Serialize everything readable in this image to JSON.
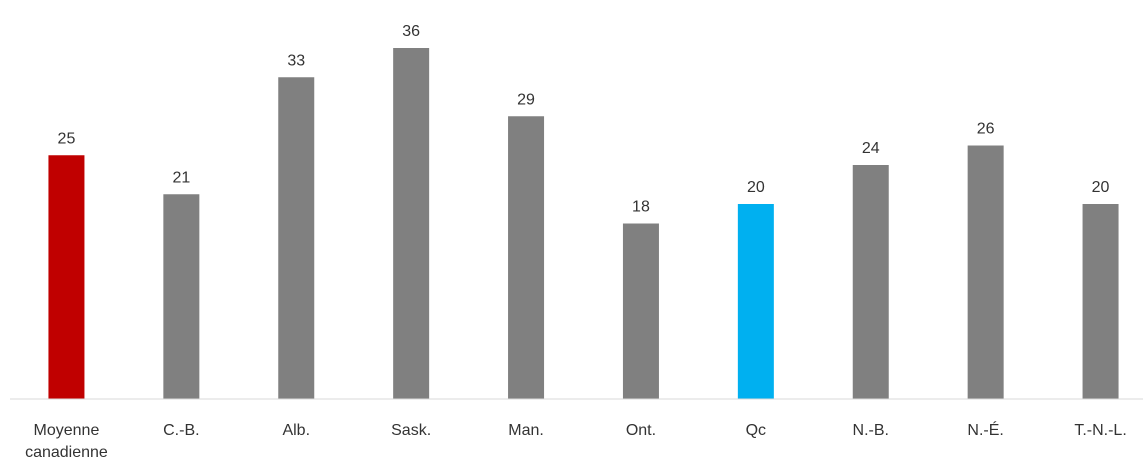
{
  "chart_data": {
    "type": "bar",
    "categories": [
      "Moyenne canadienne",
      "C.-B.",
      "Alb.",
      "Sask.",
      "Man.",
      "Ont.",
      "Qc",
      "N.-B.",
      "N.-É.",
      "T.-N.-L."
    ],
    "values": [
      25,
      21,
      33,
      36,
      29,
      18,
      20,
      24,
      26,
      20
    ],
    "colors": [
      "#c00000",
      "#808080",
      "#808080",
      "#808080",
      "#808080",
      "#808080",
      "#00b0f0",
      "#808080",
      "#808080",
      "#808080"
    ],
    "ylim": [
      0,
      40
    ]
  }
}
